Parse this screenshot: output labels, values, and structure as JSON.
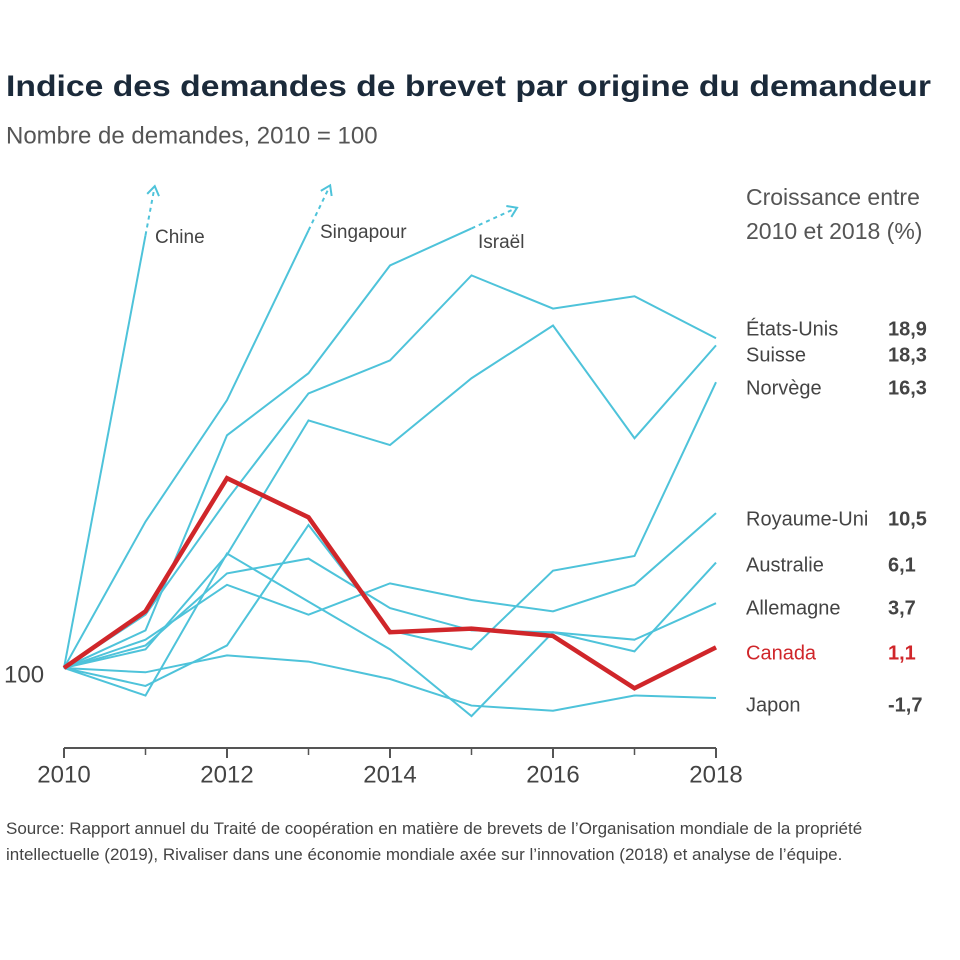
{
  "chart_data": {
    "type": "line",
    "title": "Indice des demandes de brevet par origine du demandeur",
    "subtitle": "Nombre de demandes, 2010 = 100",
    "x": [
      2010,
      2011,
      2012,
      2013,
      2014,
      2015,
      2016,
      2017,
      2018
    ],
    "xlim": [
      2010,
      2018
    ],
    "xticks": [
      2010,
      2012,
      2014,
      2016,
      2018
    ],
    "ylim": [
      69,
      960
    ],
    "yticks": [
      100
    ],
    "log_y": true,
    "growth_title": [
      "Croissance entre",
      "2010 et 2018 (%)"
    ],
    "series": [
      {
        "name": "Chine",
        "color": "#4ec3da",
        "values": [
          100,
          743,
          null,
          null,
          null,
          null,
          null,
          null,
          null
        ]
      },
      {
        "name": "Singapour",
        "color": "#4ec3da",
        "values": [
          100,
          197,
          346,
          760,
          null,
          null,
          null,
          null,
          null
        ]
      },
      {
        "name": "Israël",
        "color": "#4ec3da",
        "values": [
          100,
          119,
          294,
          392,
          646,
          767,
          null,
          null,
          null
        ]
      },
      {
        "name": "États-Unis",
        "color": "#4ec3da",
        "values": [
          100,
          128,
          218,
          357,
          416,
          617,
          529,
          560,
          461
        ],
        "growth": 18.9,
        "growth_label": "18,9"
      },
      {
        "name": "Suisse",
        "color": "#4ec3da",
        "values": [
          100,
          109,
          169,
          315,
          281,
          383,
          489,
          290,
          446
        ],
        "growth": 18.3,
        "growth_label": "18,3"
      },
      {
        "name": "Norvège",
        "color": "#4ec3da",
        "values": [
          100,
          92,
          111,
          194,
          119,
          109,
          157,
          168,
          376
        ],
        "growth": 16.3,
        "growth_label": "16,3"
      },
      {
        "name": "Royaume-Uni",
        "color": "#4ec3da",
        "values": [
          100,
          114,
          147,
          128,
          148,
          137,
          130,
          147,
          205
        ],
        "growth": 10.5,
        "growth_label": "10,5"
      },
      {
        "name": "Australie",
        "color": "#4ec3da",
        "values": [
          100,
          88,
          170,
          136,
          109,
          80,
          118,
          108,
          163
        ],
        "growth": 6.1,
        "growth_label": "6,1"
      },
      {
        "name": "Allemagne",
        "color": "#4ec3da",
        "values": [
          100,
          111,
          155,
          166,
          132,
          119,
          118,
          114,
          135
        ],
        "growth": 3.7,
        "growth_label": "3,7"
      },
      {
        "name": "Canada",
        "color": "#d0262a",
        "values": [
          100,
          130,
          241,
          201,
          118,
          120,
          116,
          91,
          110
        ],
        "growth": 1.1,
        "growth_label": "1,1"
      },
      {
        "name": "Japon",
        "color": "#4ec3da",
        "values": [
          100,
          98,
          106,
          103,
          95,
          84,
          82,
          88,
          87
        ],
        "growth": -1.7,
        "growth_label": "-1,7"
      }
    ],
    "source": "Source: Rapport annuel du Traité de coopération en matière de brevets de l’Organisation mondiale de la propriété intellectuelle (2019), Rivaliser dans une économie mondiale axée sur l’innovation (2018) et analyse de l’équipe."
  }
}
